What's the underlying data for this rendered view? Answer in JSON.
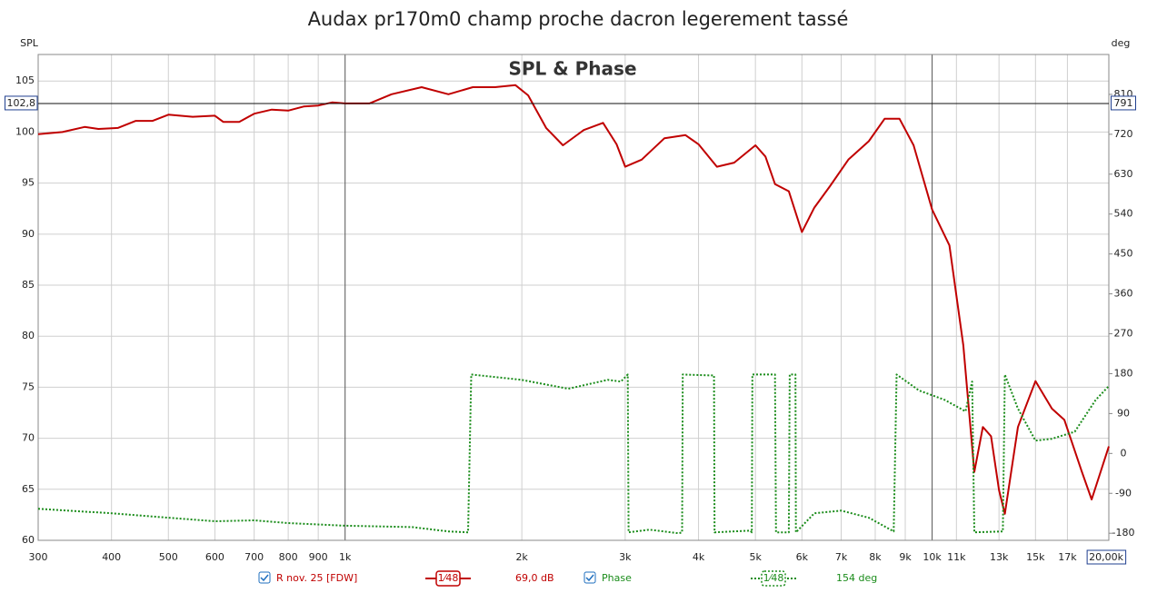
{
  "chart_data": {
    "type": "line",
    "title": "Audax pr170m0 champ proche dacron legerement tassé",
    "subtitle": "SPL & Phase",
    "y_label": "SPL",
    "y2_label": "deg",
    "xscale": "log",
    "grid": true,
    "xlim": [
      300,
      20000
    ],
    "ylim": [
      60,
      107.6
    ],
    "y2lim": [
      -196,
      900
    ],
    "xticks": [
      300,
      400,
      500,
      600,
      700,
      800,
      900,
      {
        "value": 1000,
        "label": "1k"
      },
      {
        "value": 2000,
        "label": "2k"
      },
      {
        "value": 3000,
        "label": "3k"
      },
      {
        "value": 4000,
        "label": "4k"
      },
      {
        "value": 5000,
        "label": "5k"
      },
      {
        "value": 6000,
        "label": "6k"
      },
      {
        "value": 7000,
        "label": "7k"
      },
      {
        "value": 8000,
        "label": "8k"
      },
      {
        "value": 9000,
        "label": "9k"
      },
      {
        "value": 10000,
        "label": "10k"
      },
      {
        "value": 11000,
        "label": "11k"
      },
      {
        "value": 13000,
        "label": "13k"
      },
      {
        "value": 15000,
        "label": "15k"
      },
      {
        "value": 17000,
        "label": "17k"
      },
      {
        "value": 20000,
        "label": "20,00k"
      }
    ],
    "yticks": [
      60,
      65,
      70,
      75,
      80,
      85,
      90,
      95,
      100,
      105
    ],
    "y2ticks": [
      -180,
      -90,
      0,
      90,
      180,
      270,
      360,
      450,
      540,
      630,
      720,
      810
    ],
    "cursor": {
      "value": 102.8,
      "label": "102,8",
      "y2_value": 791
    },
    "series": [
      {
        "name": "R nov. 25 [FDW]",
        "color": "#c00000",
        "smoothing": "1⁄48",
        "readout": "69,0 dB",
        "x": [
          300,
          330,
          360,
          380,
          410,
          440,
          470,
          500,
          550,
          600,
          620,
          660,
          700,
          750,
          800,
          850,
          900,
          950,
          1000,
          1100,
          1200,
          1350,
          1500,
          1650,
          1800,
          1950,
          2050,
          2200,
          2350,
          2550,
          2750,
          2900,
          3000,
          3200,
          3500,
          3800,
          4000,
          4300,
          4600,
          5000,
          5200,
          5400,
          5700,
          6000,
          6300,
          6700,
          7200,
          7800,
          8300,
          8800,
          9300,
          10000,
          10700,
          11300,
          11800,
          12200,
          12600,
          13000,
          13300,
          14000,
          15000,
          16000,
          16800,
          18000,
          18700,
          20000
        ],
        "values": [
          99.8,
          100.0,
          100.5,
          100.3,
          100.4,
          101.1,
          101.1,
          101.7,
          101.5,
          101.6,
          101.0,
          101.0,
          101.8,
          102.2,
          102.1,
          102.5,
          102.6,
          102.9,
          102.8,
          102.8,
          103.7,
          104.4,
          103.7,
          104.4,
          104.4,
          104.6,
          103.6,
          100.4,
          98.7,
          100.2,
          100.9,
          98.8,
          96.6,
          97.3,
          99.4,
          99.7,
          98.8,
          96.6,
          97.0,
          98.7,
          97.6,
          94.9,
          94.2,
          90.2,
          92.6,
          94.7,
          97.3,
          99.1,
          101.3,
          101.3,
          98.7,
          92.4,
          88.9,
          79.1,
          66.7,
          71.1,
          70.2,
          64.9,
          62.6,
          71.1,
          75.6,
          72.9,
          71.8,
          66.7,
          64.0,
          69.2
        ]
      },
      {
        "name": "Phase",
        "color": "#1a8c1a",
        "axis": "y2",
        "smoothing": "1⁄48",
        "readout": "154 deg",
        "x": [
          300,
          400,
          500,
          600,
          700,
          800,
          1000,
          1300,
          1500,
          1620,
          1640,
          2000,
          2400,
          2800,
          2950,
          3030,
          3040,
          3300,
          3700,
          3750,
          3760,
          4200,
          4250,
          4260,
          4900,
          4930,
          4940,
          5400,
          5420,
          5700,
          5720,
          5850,
          5860,
          6300,
          7000,
          7800,
          8600,
          8700,
          9500,
          10500,
          11400,
          11700,
          11800,
          13200,
          13300,
          14000,
          15000,
          16000,
          17500,
          19000,
          20000
        ],
        "values": [
          -125,
          -135,
          -145,
          -153,
          -151,
          -157,
          -163,
          -166,
          -176,
          -178,
          178,
          166,
          146,
          166,
          162,
          178,
          -178,
          -172,
          -180,
          -178,
          178,
          176,
          176,
          -178,
          -174,
          -178,
          178,
          178,
          -178,
          -178,
          178,
          178,
          -178,
          -135,
          -129,
          -145,
          -176,
          178,
          142,
          121,
          95,
          162,
          -178,
          -176,
          178,
          101,
          29,
          33,
          49,
          121,
          152
        ]
      }
    ]
  }
}
